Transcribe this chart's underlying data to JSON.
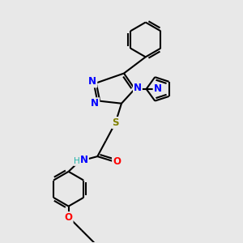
{
  "bg_color": "#e8e8e8",
  "bond_color": "#000000",
  "bond_width": 1.5,
  "atom_colors": {
    "N": "#0000FF",
    "O": "#FF0000",
    "S": "#808000",
    "H": "#20B2AA",
    "C": "#000000"
  },
  "font_size_atom": 8.5,
  "fig_w": 3.0,
  "fig_h": 3.0,
  "dpi": 100,
  "xlim": [
    0,
    10
  ],
  "ylim": [
    0,
    10
  ]
}
